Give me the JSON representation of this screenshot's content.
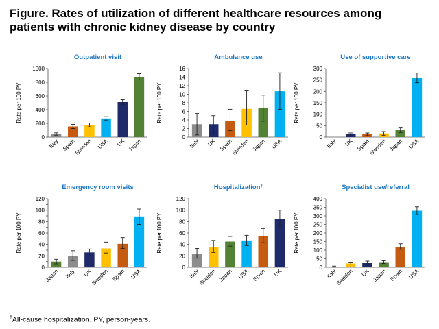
{
  "title": "Figure. Rates of utilization of different healthcare resources among patients with chronic kidney disease by country",
  "footnote": {
    "marker": "†",
    "text": "All-cause hospitalization. PY, person-years."
  },
  "colors": {
    "Italy": "#8c8c8c",
    "Spain": "#c55a11",
    "Sweden": "#ffc000",
    "USA": "#00b0f0",
    "UK": "#1f2a6b",
    "Japan": "#548235",
    "title_blue": "#1f78c1"
  },
  "chart_data": [
    {
      "type": "bar",
      "title": "Outpatient visit",
      "ylabel": "Rate per 100 PY",
      "ylim": [
        0,
        1000
      ],
      "yticks": [
        0,
        200,
        400,
        600,
        800,
        1000
      ],
      "categories": [
        "Italy",
        "Spain",
        "Sweden",
        "USA",
        "UK",
        "Japan"
      ],
      "values": [
        45,
        155,
        178,
        272,
        510,
        880
      ],
      "error_low": [
        28,
        125,
        148,
        248,
        478,
        835
      ],
      "error_high": [
        62,
        185,
        205,
        298,
        545,
        925
      ]
    },
    {
      "type": "bar",
      "title": "Ambulance use",
      "ylabel": "Rate per 100 PY",
      "ylim": [
        0,
        16
      ],
      "yticks": [
        0,
        2,
        4,
        6,
        8,
        10,
        12,
        14,
        16
      ],
      "categories": [
        "Italy",
        "UK",
        "Spain",
        "Sweden",
        "Japan",
        "USA"
      ],
      "values": [
        3.0,
        3.0,
        3.8,
        6.6,
        6.8,
        10.7
      ],
      "error_low": [
        0.5,
        0.8,
        1.5,
        2.8,
        3.7,
        6.5
      ],
      "error_high": [
        5.5,
        5.0,
        6.5,
        10.8,
        9.8,
        15.0
      ]
    },
    {
      "type": "bar",
      "title": "Use of supportive care",
      "ylabel": "Rate per 100 PY",
      "ylim": [
        0,
        300
      ],
      "yticks": [
        0,
        50,
        100,
        150,
        200,
        250,
        300
      ],
      "categories": [
        "Italy",
        "UK",
        "Spain",
        "Sweden",
        "Japan",
        "USA"
      ],
      "values": [
        0,
        12,
        12,
        16,
        30,
        258
      ],
      "error_low": [
        0,
        6,
        6,
        8,
        20,
        238
      ],
      "error_high": [
        0,
        18,
        18,
        24,
        40,
        280
      ]
    },
    {
      "type": "bar",
      "title": "Emergency room visits",
      "ylabel": "Rate per 100 PY",
      "ylim": [
        0,
        120
      ],
      "yticks": [
        0,
        10,
        20,
        30,
        40,
        50,
        60,
        70,
        80,
        90,
        100,
        110,
        120
      ],
      "ytick_labels": [
        "0",
        "",
        "20",
        "",
        "40",
        "",
        "60",
        "",
        "80",
        "",
        "100",
        "",
        "120"
      ],
      "categories": [
        "Japan",
        "Italy",
        "UK",
        "Sweden",
        "Spain",
        "USA"
      ],
      "values": [
        10,
        20,
        26,
        33,
        41,
        89
      ],
      "error_low": [
        6,
        12,
        20,
        25,
        33,
        75
      ],
      "error_high": [
        14,
        29,
        32,
        44,
        52,
        102
      ]
    },
    {
      "type": "bar",
      "title": "Hospitalization",
      "title_marker": "†",
      "ylabel": "Rate per 100 PY",
      "ylim": [
        0,
        120
      ],
      "yticks": [
        0,
        20,
        40,
        60,
        80,
        100,
        120
      ],
      "categories": [
        "Italy",
        "Sweden",
        "Japan",
        "USA",
        "Spain",
        "UK"
      ],
      "values": [
        24,
        36,
        45,
        47,
        55,
        85
      ],
      "error_low": [
        16,
        26,
        37,
        38,
        43,
        72
      ],
      "error_high": [
        33,
        47,
        54,
        56,
        68,
        100
      ]
    },
    {
      "type": "bar",
      "title": "Specialist use/referral",
      "ylabel": "Rate per 100 PY",
      "ylim": [
        0,
        400
      ],
      "yticks": [
        0,
        50,
        100,
        150,
        200,
        250,
        300,
        350,
        400
      ],
      "categories": [
        "Italy",
        "Sweden",
        "UK",
        "Japan",
        "Spain",
        "USA"
      ],
      "values": [
        4,
        22,
        28,
        30,
        120,
        330
      ],
      "error_low": [
        1,
        14,
        20,
        22,
        105,
        307
      ],
      "error_high": [
        7,
        30,
        36,
        38,
        137,
        353
      ]
    }
  ]
}
